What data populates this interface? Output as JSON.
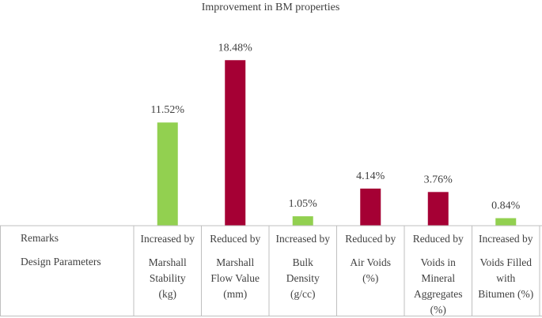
{
  "chart_data": {
    "type": "bar",
    "title": "Improvement in BM properties",
    "value_format": "percent_2dp",
    "row_labels": {
      "remarks": "Remarks",
      "parameters": "Design Parameters"
    },
    "categories": [
      {
        "remark": "Increased by",
        "parameter_lines": [
          "Marshall",
          "Stability",
          "(kg)"
        ],
        "value": 11.52,
        "label": "11.52%",
        "color": "#92d050"
      },
      {
        "remark": "Reduced by",
        "parameter_lines": [
          "Marshall",
          "Flow Value",
          "(mm)"
        ],
        "value": 18.48,
        "label": "18.48%",
        "color": "#a50034"
      },
      {
        "remark": "Increased by",
        "parameter_lines": [
          "Bulk",
          "Density",
          "(g/cc)"
        ],
        "value": 1.05,
        "label": "1.05%",
        "color": "#92d050"
      },
      {
        "remark": "Reduced by",
        "parameter_lines": [
          "Air Voids",
          "(%)"
        ],
        "value": 4.14,
        "label": "4.14%",
        "color": "#a50034"
      },
      {
        "remark": "Reduced by",
        "parameter_lines": [
          "Voids in",
          "Mineral",
          "Aggregates",
          "(%)"
        ],
        "value": 3.76,
        "label": "3.76%",
        "color": "#a50034"
      },
      {
        "remark": "Increased by",
        "parameter_lines": [
          "Voids Filled",
          "with",
          "Bitumen (%)"
        ],
        "value": 0.84,
        "label": "0.84%",
        "color": "#92d050"
      }
    ],
    "ylim": [
      0,
      20
    ],
    "colors": {
      "increase": "#92d050",
      "decrease": "#a50034",
      "grid": "#bfbfbf"
    }
  }
}
